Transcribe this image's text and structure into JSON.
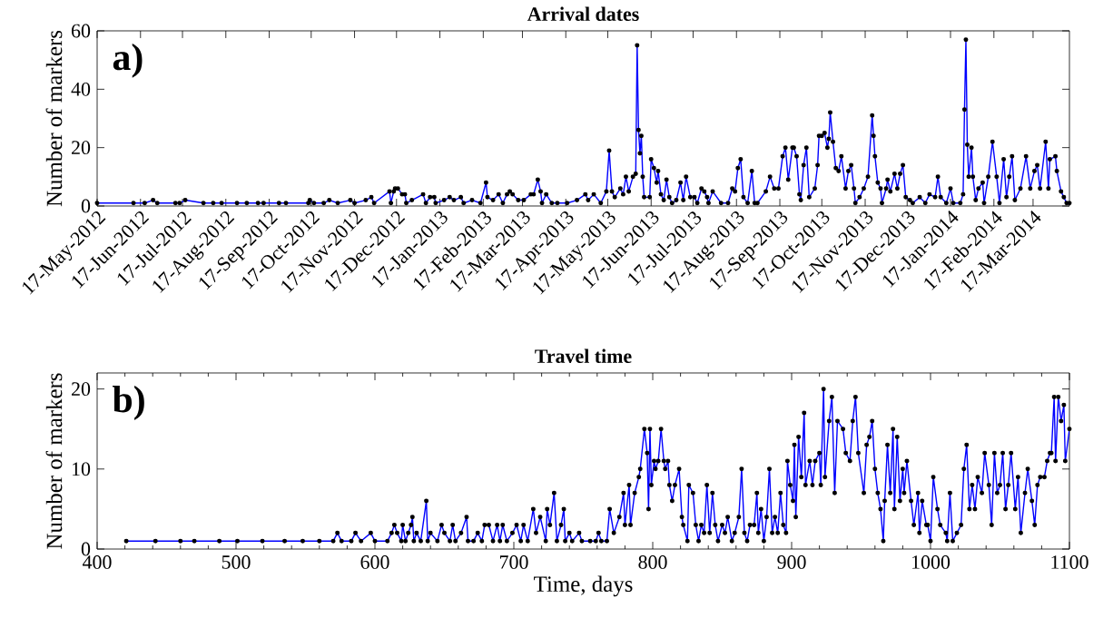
{
  "chart_data": [
    {
      "type": "line",
      "title": "Arrival dates",
      "ylabel": "Number of markers",
      "annotations": [
        "a)"
      ],
      "color": "#0000ff",
      "marker": "circle",
      "line_style": "solid",
      "xlim": [
        "2012-05-17",
        "2014-04-12"
      ],
      "ylim": [
        0,
        60
      ],
      "yticks": [
        0,
        20,
        40,
        60
      ],
      "xticks": [
        {
          "value": "2012-05-17",
          "label": "17-May-2012"
        },
        {
          "value": "2012-06-17",
          "label": "17-Jun-2012"
        },
        {
          "value": "2012-07-17",
          "label": "17-Jul-2012"
        },
        {
          "value": "2012-08-17",
          "label": "17-Aug-2012"
        },
        {
          "value": "2012-09-17",
          "label": "17-Sep-2012"
        },
        {
          "value": "2012-10-17",
          "label": "17-Oct-2012"
        },
        {
          "value": "2012-11-17",
          "label": "17-Nov-2012"
        },
        {
          "value": "2012-12-17",
          "label": "17-Dec-2012"
        },
        {
          "value": "2013-01-17",
          "label": "17-Jan-2013"
        },
        {
          "value": "2013-02-17",
          "label": "17-Feb-2013"
        },
        {
          "value": "2013-03-17",
          "label": "17-Mar-2013"
        },
        {
          "value": "2013-04-17",
          "label": "17-Apr-2013"
        },
        {
          "value": "2013-05-17",
          "label": "17-May-2013"
        },
        {
          "value": "2013-06-17",
          "label": "17-Jun-2013"
        },
        {
          "value": "2013-07-17",
          "label": "17-Jul-2013"
        },
        {
          "value": "2013-08-17",
          "label": "17-Aug-2013"
        },
        {
          "value": "2013-09-17",
          "label": "17-Sep-2013"
        },
        {
          "value": "2013-10-17",
          "label": "17-Oct-2013"
        },
        {
          "value": "2013-11-17",
          "label": "17-Nov-2013"
        },
        {
          "value": "2013-12-17",
          "label": "17-Dec-2013"
        },
        {
          "value": "2014-01-17",
          "label": "17-Jan-2014"
        },
        {
          "value": "2014-02-17",
          "label": "17-Feb-2014"
        },
        {
          "value": "2014-03-17",
          "label": "17-Mar-2014"
        }
      ],
      "x": [
        "2012-05-17",
        "2012-06-12",
        "2012-06-20",
        "2012-06-26",
        "2012-06-29",
        "2012-07-12",
        "2012-07-15",
        "2012-07-19",
        "2012-08-01",
        "2012-08-08",
        "2012-08-14",
        "2012-08-25",
        "2012-09-01",
        "2012-09-09",
        "2012-09-13",
        "2012-09-24",
        "2012-09-29",
        "2012-10-15",
        "2012-10-16",
        "2012-10-19",
        "2012-10-26",
        "2012-10-30",
        "2012-11-05",
        "2012-11-14",
        "2012-11-17",
        "2012-11-25",
        "2012-11-29",
        "2012-12-01",
        "2012-12-12",
        "2012-12-13",
        "2012-12-15",
        "2012-12-16",
        "2012-12-18",
        "2012-12-21",
        "2012-12-23",
        "2012-12-24",
        "2012-12-28",
        "2013-01-05",
        "2013-01-07",
        "2013-01-10",
        "2013-01-13",
        "2013-01-14",
        "2013-01-20",
        "2013-01-24",
        "2013-01-27",
        "2013-02-01",
        "2013-02-03",
        "2013-02-09",
        "2013-02-15",
        "2013-02-19",
        "2013-02-20",
        "2013-02-24",
        "2013-02-28",
        "2013-03-03",
        "2013-03-06",
        "2013-03-08",
        "2013-03-10",
        "2013-03-14",
        "2013-03-18",
        "2013-03-23",
        "2013-03-25",
        "2013-03-28",
        "2013-03-30",
        "2013-03-31",
        "2013-04-03",
        "2013-04-07",
        "2013-04-11",
        "2013-04-18",
        "2013-04-25",
        "2013-05-01",
        "2013-05-03",
        "2013-05-07",
        "2013-05-12",
        "2013-05-16",
        "2013-05-18",
        "2013-05-20",
        "2013-05-22",
        "2013-05-26",
        "2013-05-28",
        "2013-05-30",
        "2013-06-01",
        "2013-06-04",
        "2013-06-06",
        "2013-06-07",
        "2013-06-08",
        "2013-06-09",
        "2013-06-10",
        "2013-06-11",
        "2013-06-12",
        "2013-06-16",
        "2013-06-17",
        "2013-06-19",
        "2013-06-21",
        "2013-06-22",
        "2013-06-24",
        "2013-06-26",
        "2013-06-28",
        "2013-06-30",
        "2013-07-02",
        "2013-07-05",
        "2013-07-08",
        "2013-07-10",
        "2013-07-12",
        "2013-07-15",
        "2013-07-18",
        "2013-07-20",
        "2013-07-23",
        "2013-07-25",
        "2013-07-27",
        "2013-07-28",
        "2013-07-31",
        "2013-08-06",
        "2013-08-11",
        "2013-08-14",
        "2013-08-16",
        "2013-08-18",
        "2013-08-20",
        "2013-08-22",
        "2013-08-25",
        "2013-08-28",
        "2013-08-30",
        "2013-09-01",
        "2013-09-07",
        "2013-09-10",
        "2013-09-13",
        "2013-09-16",
        "2013-09-19",
        "2013-09-21",
        "2013-09-23",
        "2013-09-26",
        "2013-09-27",
        "2013-09-29",
        "2013-10-01",
        "2013-10-02",
        "2013-10-04",
        "2013-10-06",
        "2013-10-08",
        "2013-10-12",
        "2013-10-14",
        "2013-10-15",
        "2013-10-17",
        "2013-10-19",
        "2013-10-21",
        "2013-10-22",
        "2013-10-23",
        "2013-10-25",
        "2013-10-27",
        "2013-10-29",
        "2013-10-31",
        "2013-11-03",
        "2013-11-05",
        "2013-11-07",
        "2013-11-09",
        "2013-11-10",
        "2013-11-13",
        "2013-11-16",
        "2013-11-19",
        "2013-11-22",
        "2013-11-23",
        "2013-11-24",
        "2013-11-26",
        "2013-11-28",
        "2013-11-29",
        "2013-12-02",
        "2013-12-03",
        "2013-12-05",
        "2013-12-08",
        "2013-12-10",
        "2013-12-12",
        "2013-12-14",
        "2013-12-16",
        "2013-12-19",
        "2013-12-21",
        "2013-12-26",
        "2013-12-30",
        "2014-01-02",
        "2014-01-06",
        "2014-01-08",
        "2014-01-10",
        "2014-01-14",
        "2014-01-17",
        "2014-01-19",
        "2014-01-24",
        "2014-01-26",
        "2014-01-27",
        "2014-01-28",
        "2014-01-29",
        "2014-01-30",
        "2014-02-01",
        "2014-02-02",
        "2014-02-04",
        "2014-02-06",
        "2014-02-09",
        "2014-02-10",
        "2014-02-13",
        "2014-02-16",
        "2014-02-19",
        "2014-02-21",
        "2014-02-24",
        "2014-02-26",
        "2014-02-28",
        "2014-03-02",
        "2014-03-04",
        "2014-03-08",
        "2014-03-12",
        "2014-03-15",
        "2014-03-18",
        "2014-03-20",
        "2014-03-22",
        "2014-03-26",
        "2014-03-28",
        "2014-03-29",
        "2014-04-02",
        "2014-04-03",
        "2014-04-06",
        "2014-04-08",
        "2014-04-10",
        "2014-04-12"
      ],
      "values": [
        1,
        1,
        1,
        2,
        1,
        1,
        1,
        2,
        1,
        1,
        1,
        1,
        1,
        1,
        1,
        1,
        1,
        1,
        2,
        1,
        1,
        2,
        1,
        2,
        1,
        2,
        3,
        1,
        5,
        1,
        5,
        6,
        6,
        4,
        4,
        1,
        2,
        4,
        1,
        3,
        3,
        1,
        2,
        3,
        2,
        3,
        1,
        2,
        1,
        8,
        3,
        2,
        4,
        1,
        4,
        5,
        4,
        2,
        2,
        4,
        4,
        9,
        5,
        1,
        4,
        1,
        1,
        1,
        2,
        4,
        2,
        4,
        1,
        5,
        19,
        5,
        3,
        6,
        4,
        10,
        5,
        10,
        11,
        55,
        26,
        18,
        24,
        10,
        3,
        3,
        16,
        13,
        8,
        12,
        4,
        2,
        9,
        3,
        1,
        2,
        8,
        2,
        10,
        3,
        3,
        1,
        6,
        5,
        3,
        1,
        5,
        1,
        1,
        6,
        5,
        13,
        16,
        3,
        1,
        12,
        1,
        1,
        5,
        10,
        6,
        6,
        17,
        20,
        9,
        20,
        20,
        17,
        4,
        2,
        14,
        20,
        3,
        6,
        14,
        24,
        24,
        25,
        20,
        23,
        32,
        22,
        13,
        12,
        17,
        6,
        12,
        14,
        6,
        1,
        3,
        6,
        10,
        31,
        24,
        17,
        8,
        6,
        1,
        6,
        9,
        5,
        11,
        6,
        11,
        14,
        3,
        2,
        1,
        3,
        1,
        4,
        3,
        10,
        3,
        1,
        6,
        1,
        1,
        4,
        33,
        57,
        21,
        10,
        20,
        10,
        2,
        6,
        8,
        1,
        10,
        22,
        10,
        1,
        16,
        3,
        10,
        17,
        2,
        6,
        17,
        6,
        12,
        14,
        6,
        22,
        6,
        16,
        17,
        12,
        5,
        3,
        1,
        1
      ]
    },
    {
      "type": "line",
      "title": "Travel time",
      "xlabel": "Time, days",
      "ylabel": "Number of markers",
      "annotations": [
        "b)"
      ],
      "color": "#0000ff",
      "marker": "circle",
      "line_style": "solid",
      "xlim": [
        400,
        1100
      ],
      "ylim": [
        0,
        22
      ],
      "xticks": [
        400,
        500,
        600,
        700,
        800,
        900,
        1000,
        1100
      ],
      "yticks": [
        0,
        10,
        20
      ],
      "x": [
        421,
        442,
        460,
        470,
        488,
        501,
        519,
        535,
        548,
        560,
        570,
        573,
        576,
        583,
        586,
        590,
        597,
        600,
        609,
        612,
        614,
        616,
        619,
        620,
        622,
        624,
        626,
        627,
        628,
        630,
        633,
        637,
        638,
        640,
        645,
        648,
        650,
        654,
        656,
        658,
        662,
        666,
        667,
        671,
        674,
        677,
        679,
        682,
        685,
        688,
        690,
        692,
        695,
        699,
        702,
        705,
        707,
        710,
        714,
        716,
        719,
        723,
        724,
        726,
        729,
        731,
        734,
        736,
        737,
        740,
        742,
        747,
        749,
        755,
        759,
        761,
        763,
        767,
        769,
        772,
        776,
        779,
        780,
        783,
        784,
        787,
        790,
        791,
        794,
        796,
        797,
        798,
        799,
        801,
        802,
        804,
        806,
        808,
        809,
        811,
        812,
        814,
        816,
        819,
        821,
        822,
        825,
        826,
        829,
        831,
        833,
        835,
        837,
        839,
        841,
        843,
        845,
        847,
        850,
        852,
        854,
        857,
        859,
        862,
        864,
        866,
        868,
        870,
        873,
        875,
        876,
        878,
        880,
        882,
        884,
        886,
        888,
        890,
        892,
        894,
        896,
        897,
        899,
        901,
        902,
        903,
        905,
        907,
        909,
        910,
        913,
        915,
        917,
        920,
        921,
        923,
        924,
        927,
        929,
        931,
        933,
        935,
        937,
        939,
        942,
        944,
        946,
        948,
        950,
        952,
        954,
        956,
        958,
        960,
        962,
        964,
        966,
        967,
        969,
        971,
        973,
        974,
        976,
        978,
        980,
        981,
        983,
        986,
        988,
        991,
        992,
        994,
        997,
        998,
        1000,
        1002,
        1005,
        1007,
        1011,
        1012,
        1014,
        1016,
        1019,
        1022,
        1024,
        1026,
        1028,
        1030,
        1032,
        1034,
        1037,
        1039,
        1042,
        1044,
        1046,
        1048,
        1050,
        1052,
        1054,
        1056,
        1058,
        1061,
        1063,
        1065,
        1068,
        1070,
        1073,
        1075,
        1077,
        1079,
        1082,
        1084,
        1086,
        1087,
        1089,
        1090,
        1092,
        1094,
        1096,
        1097,
        1100
      ],
      "values": [
        1,
        1,
        1,
        1,
        1,
        1,
        1,
        1,
        1,
        1,
        1,
        2,
        1,
        1,
        2,
        1,
        2,
        1,
        1,
        2,
        3,
        2,
        1,
        3,
        1,
        2,
        3,
        4,
        1,
        2,
        1,
        6,
        1,
        2,
        1,
        3,
        2,
        1,
        3,
        1,
        2,
        4,
        1,
        1,
        2,
        1,
        3,
        3,
        1,
        3,
        1,
        3,
        1,
        2,
        3,
        1,
        3,
        1,
        5,
        2,
        4,
        1,
        5,
        3,
        7,
        1,
        3,
        5,
        1,
        2,
        1,
        2,
        1,
        1,
        1,
        2,
        1,
        1,
        5,
        2,
        4,
        7,
        3,
        8,
        3,
        7,
        9,
        10,
        15,
        12,
        5,
        15,
        8,
        11,
        10,
        11,
        15,
        11,
        10,
        11,
        8,
        6,
        8,
        10,
        4,
        3,
        1,
        8,
        7,
        3,
        1,
        3,
        2,
        8,
        2,
        7,
        3,
        1,
        3,
        2,
        4,
        1,
        2,
        4,
        10,
        2,
        1,
        3,
        3,
        7,
        2,
        5,
        1,
        4,
        10,
        2,
        4,
        2,
        7,
        3,
        2,
        11,
        8,
        6,
        13,
        4,
        14,
        9,
        17,
        8,
        11,
        8,
        11,
        12,
        8,
        20,
        9,
        16,
        19,
        7,
        16,
        null,
        15,
        12,
        11,
        16,
        19,
        12,
        null,
        7,
        13,
        14,
        16,
        10,
        7,
        5,
        1,
        6,
        13,
        7,
        15,
        5,
        14,
        6,
        10,
        7,
        11,
        6,
        3,
        7,
        2,
        6,
        3,
        3,
        1,
        9,
        5,
        3,
        2,
        1,
        7,
        1,
        2,
        3,
        10,
        13,
        5,
        8,
        5,
        9,
        7,
        12,
        8,
        3,
        12,
        7,
        8,
        12,
        5,
        8,
        12,
        5,
        9,
        2,
        7,
        10,
        6,
        3,
        8,
        9,
        9,
        11,
        12,
        12,
        19,
        11,
        19,
        16,
        18,
        11,
        15
      ]
    }
  ]
}
